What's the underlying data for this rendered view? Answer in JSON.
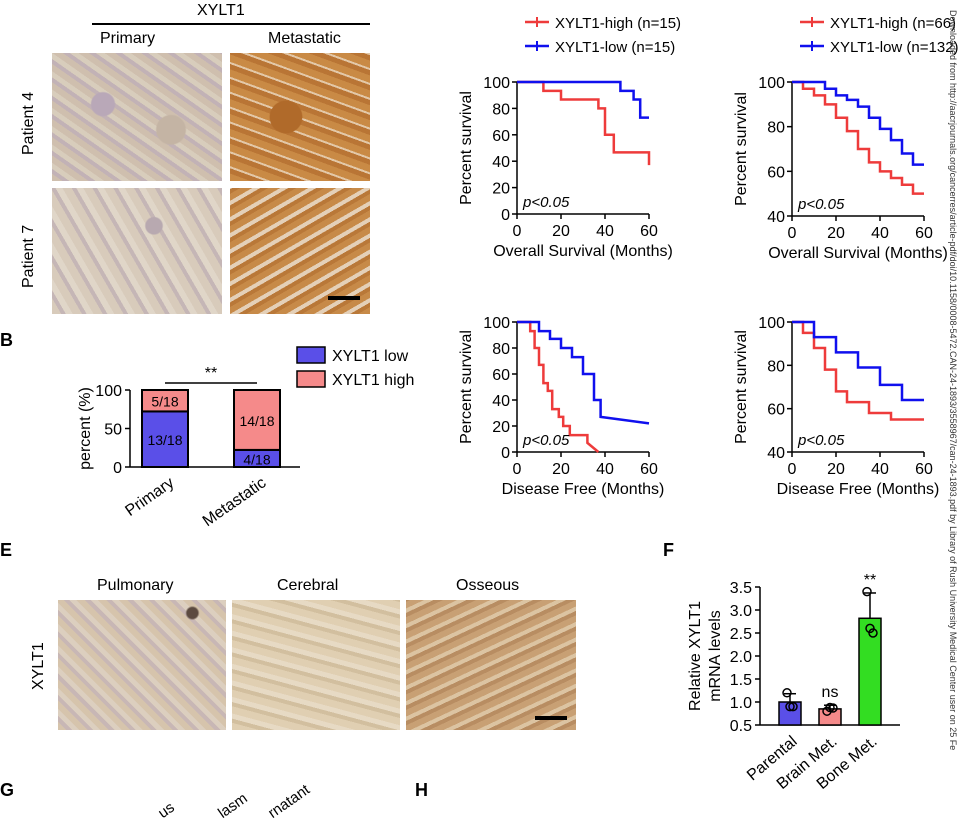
{
  "panel_letters": {
    "b": "B",
    "e": "E",
    "f": "F",
    "g": "G",
    "h": "H"
  },
  "panel_a": {
    "gene": "XYLT1",
    "columns": [
      "Primary",
      "Metastatic"
    ],
    "rows": [
      "Patient 4",
      "Patient 7"
    ]
  },
  "panel_e": {
    "row_label": "XYLT1",
    "columns": [
      "Pulmonary",
      "Cerebral",
      "Osseous"
    ]
  },
  "panel_g_headers": [
    "us",
    "lasm",
    "rnatant"
  ],
  "watermark": "Downloaded from http://aacrjournals.org/cancerres/article-pdf/doi/10.1158/0008-5472.CAN-24-1893/3558967/can-24-1893.pdf by Library of Rush University Medical Center user on 25 Fe",
  "colors": {
    "red": "#ee3b3b",
    "blue": "#1010ee",
    "bar_blue": "#5a4fe8",
    "bar_red": "#f58a8a",
    "green": "#33dd22"
  },
  "chart_data": [
    {
      "type": "bar",
      "id": "B",
      "categories": [
        "Primary",
        "Metastatic"
      ],
      "series": [
        {
          "name": "XYLT1 low",
          "values": [
            72.2,
            22.2
          ],
          "labels": [
            "13/18",
            "4/18"
          ]
        },
        {
          "name": "XYLT1 high",
          "values": [
            27.8,
            77.8
          ],
          "labels": [
            "5/18",
            "14/18"
          ]
        }
      ],
      "stacked": true,
      "ylabel": "percent (%)",
      "ylim": [
        0,
        100
      ],
      "yticks": [
        0,
        50,
        100
      ],
      "annotation": "**",
      "legend_position": "top-right"
    },
    {
      "type": "line",
      "id": "C-OS",
      "step": true,
      "legend": [
        "XYLT1-high (n=15)",
        "XYLT1-low (n=15)"
      ],
      "series": [
        {
          "name": "XYLT1-high (n=15)",
          "x": [
            0,
            12,
            12,
            20,
            20,
            37,
            37,
            40,
            40,
            44,
            44,
            60,
            60
          ],
          "y": [
            100,
            100,
            93.3,
            93.3,
            86.7,
            86.7,
            80,
            80,
            60,
            60,
            46.7,
            46.7,
            37
          ]
        },
        {
          "name": "XYLT1-low (n=15)",
          "x": [
            0,
            47,
            47,
            53,
            53,
            56,
            56,
            60
          ],
          "y": [
            100,
            100,
            93.3,
            93.3,
            86.7,
            86.7,
            73,
            73
          ]
        }
      ],
      "xlabel": "Overall Survival (Months)",
      "ylabel": "Percent survival",
      "xlim": [
        0,
        60
      ],
      "ylim": [
        0,
        100
      ],
      "xticks": [
        0,
        20,
        40,
        60
      ],
      "yticks": [
        0,
        20,
        40,
        60,
        80,
        100
      ],
      "annotation": "p<0.05"
    },
    {
      "type": "line",
      "id": "D-OS",
      "step": true,
      "legend": [
        "XYLT1-high (n=66)",
        "XYLT1-low (n=132)"
      ],
      "series": [
        {
          "name": "XYLT1-high (n=66)",
          "x": [
            0,
            5,
            5,
            10,
            10,
            15,
            15,
            20,
            20,
            25,
            25,
            30,
            30,
            35,
            35,
            40,
            40,
            45,
            45,
            50,
            50,
            55,
            55,
            60
          ],
          "y": [
            100,
            100,
            97,
            97,
            94,
            94,
            90,
            90,
            84,
            84,
            78,
            78,
            70,
            70,
            64,
            64,
            60,
            60,
            57,
            57,
            54,
            54,
            50,
            50
          ]
        },
        {
          "name": "XYLT1-low (n=132)",
          "x": [
            0,
            15,
            15,
            20,
            20,
            25,
            25,
            30,
            30,
            35,
            35,
            40,
            40,
            45,
            45,
            50,
            50,
            55,
            55,
            60
          ],
          "y": [
            100,
            100,
            97,
            97,
            94,
            94,
            92,
            92,
            89,
            89,
            84,
            84,
            79,
            79,
            74,
            74,
            68,
            68,
            63,
            63
          ]
        }
      ],
      "xlabel": "Overall Survival (Months)",
      "ylabel": "Percent survival",
      "xlim": [
        0,
        60
      ],
      "ylim": [
        40,
        100
      ],
      "xticks": [
        0,
        20,
        40,
        60
      ],
      "yticks": [
        40,
        60,
        80,
        100
      ],
      "annotation": "p<0.05"
    },
    {
      "type": "line",
      "id": "C-DFS",
      "step": true,
      "series": [
        {
          "name": "XYLT1-high (n=15)",
          "x": [
            0,
            6,
            6,
            8,
            8,
            10,
            10,
            12,
            12,
            14,
            14,
            16,
            16,
            19,
            19,
            21,
            21,
            24,
            24,
            32,
            32,
            37
          ],
          "y": [
            100,
            100,
            93,
            93,
            80,
            80,
            67,
            67,
            53,
            53,
            47,
            47,
            33,
            33,
            27,
            27,
            20,
            20,
            13,
            13,
            7,
            0
          ]
        },
        {
          "name": "XYLT1-low (n=15)",
          "x": [
            0,
            10,
            10,
            15,
            15,
            20,
            20,
            25,
            25,
            30,
            30,
            35,
            35,
            38,
            38,
            60
          ],
          "y": [
            100,
            100,
            93,
            93,
            87,
            87,
            80,
            80,
            73,
            73,
            60,
            60,
            40,
            40,
            27,
            22
          ]
        }
      ],
      "xlabel": "Disease Free (Months)",
      "ylabel": "Percent survival",
      "xlim": [
        0,
        60
      ],
      "ylim": [
        0,
        100
      ],
      "xticks": [
        0,
        20,
        40,
        60
      ],
      "yticks": [
        0,
        20,
        40,
        60,
        80,
        100
      ],
      "annotation": "p<0.05"
    },
    {
      "type": "line",
      "id": "D-DFS",
      "step": true,
      "series": [
        {
          "name": "XYLT1-high (n=66)",
          "x": [
            0,
            5,
            5,
            10,
            10,
            15,
            15,
            20,
            20,
            25,
            25,
            35,
            35,
            45,
            45,
            60
          ],
          "y": [
            100,
            100,
            95,
            95,
            88,
            88,
            78,
            78,
            68,
            68,
            63,
            63,
            58,
            58,
            55,
            55
          ]
        },
        {
          "name": "XYLT1-low (n=132)",
          "x": [
            0,
            10,
            10,
            20,
            20,
            30,
            30,
            40,
            40,
            50,
            50,
            60
          ],
          "y": [
            100,
            100,
            93,
            93,
            86,
            86,
            79,
            79,
            71,
            71,
            64,
            64
          ]
        }
      ],
      "xlabel": "Disease Free (Months)",
      "ylabel": "Percent survival",
      "xlim": [
        0,
        60
      ],
      "ylim": [
        40,
        100
      ],
      "xticks": [
        0,
        20,
        40,
        60
      ],
      "yticks": [
        40,
        60,
        80,
        100
      ],
      "annotation": "p<0.05"
    },
    {
      "type": "bar",
      "id": "F",
      "categories": [
        "Parental",
        "Brain Met.",
        "Bone Met."
      ],
      "values": [
        1.0,
        0.85,
        2.82
      ],
      "errors": [
        0.18,
        0.08,
        0.55
      ],
      "points": [
        [
          1.2,
          0.9,
          0.9
        ],
        [
          0.8,
          0.88,
          0.87
        ],
        [
          3.4,
          2.6,
          2.5
        ]
      ],
      "annotations": [
        "",
        "ns",
        "**"
      ],
      "ylabel": "Relative XYLT1 mRNA levels",
      "ylim": [
        0.5,
        3.5
      ],
      "yticks": [
        0.5,
        1.0,
        1.5,
        2.0,
        2.5,
        3.0,
        3.5
      ]
    }
  ]
}
